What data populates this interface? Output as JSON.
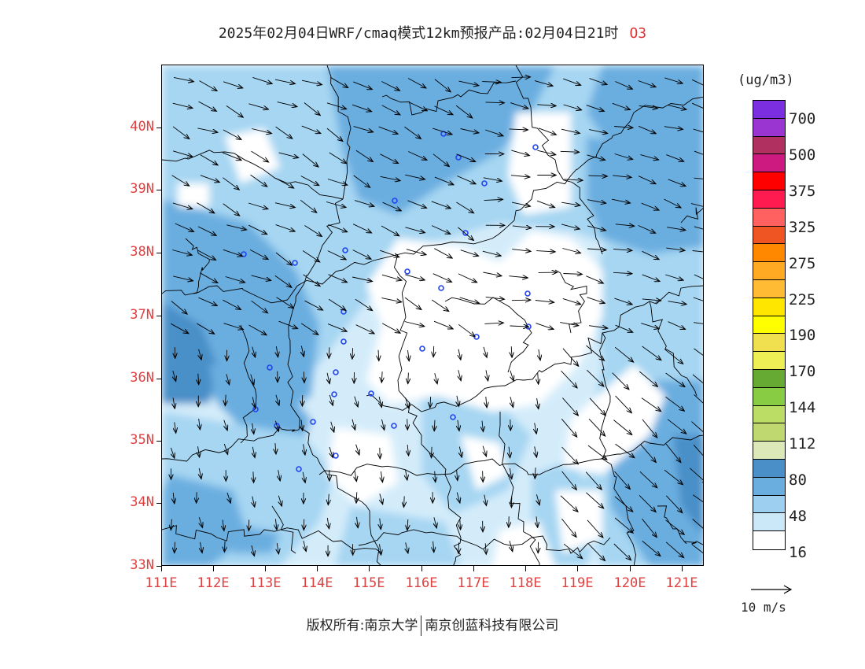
{
  "header": {
    "title": "2025年02月04日WRF/cmaq模式12km预报产品:02月04日21时",
    "species": "O3"
  },
  "map": {
    "lat_labels": [
      "40N",
      "39N",
      "38N",
      "37N",
      "36N",
      "35N",
      "34N",
      "33N"
    ],
    "lon_labels": [
      "111E",
      "112E",
      "113E",
      "114E",
      "115E",
      "116E",
      "117E",
      "118E",
      "119E",
      "120E",
      "121E"
    ]
  },
  "legend": {
    "unit": "(ug/m3)",
    "labels": [
      "700",
      "500",
      "375",
      "325",
      "275",
      "225",
      "190",
      "170",
      "144",
      "112",
      "80",
      "48",
      "16"
    ],
    "colors": [
      "#7a2ee0",
      "#9b35d2",
      "#b03060",
      "#cc1a80",
      "#ff0000",
      "#ff1a50",
      "#ff6060",
      "#ee5522",
      "#ff8800",
      "#ffaa22",
      "#ffbb33",
      "#ffe600",
      "#ffff00",
      "#f0e050",
      "#eeee55",
      "#66aa33",
      "#88cc44",
      "#bbdd66",
      "#c0d870",
      "#dde8b8",
      "#4a8fc8",
      "#6aaee0",
      "#9dd0f0",
      "#cbe8f8",
      "#ffffff"
    ],
    "ref_vector_label": "10 m/s"
  },
  "footer": {
    "copyright_left": "版权所有:南京大学",
    "copyright_right": "南京创蓝科技有限公司"
  }
}
